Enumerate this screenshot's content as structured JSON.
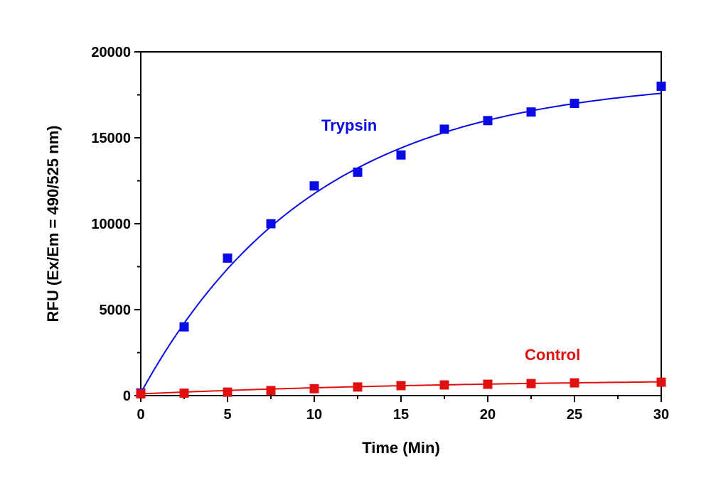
{
  "chart_data": {
    "type": "scatter",
    "xlabel": "Time (Min)",
    "ylabel": "RFU (Ex/Em = 490/525 nm)",
    "xlim": [
      0,
      30
    ],
    "ylim": [
      0,
      20000
    ],
    "x_ticks": [
      "0",
      "5",
      "10",
      "15",
      "20",
      "25",
      "30"
    ],
    "y_ticks": [
      "0",
      "5000",
      "10000",
      "15000",
      "20000"
    ],
    "grid": false,
    "legend": "none (inline series labels)",
    "series": [
      {
        "name": "Trypsin",
        "color": "#0a0ae6",
        "marker": "square",
        "x": [
          0,
          2.5,
          5,
          7.5,
          10,
          12.5,
          15,
          17.5,
          20,
          22.5,
          25,
          30
        ],
        "y": [
          150,
          4000,
          8000,
          10000,
          12200,
          13000,
          14000,
          15500,
          16000,
          16500,
          17000,
          18000
        ],
        "fit": {
          "model": "exponential rise",
          "plateau": 18500,
          "rate": 0.1
        }
      },
      {
        "name": "Control",
        "color": "#e01010",
        "marker": "square",
        "x": [
          0,
          2.5,
          5,
          7.5,
          10,
          12.5,
          15,
          17.5,
          20,
          22.5,
          25,
          30
        ],
        "y": [
          100,
          140,
          200,
          290,
          400,
          500,
          580,
          620,
          660,
          700,
          740,
          780
        ],
        "fit": {
          "model": "exponential rise",
          "plateau": 1000,
          "rate": 0.05
        }
      }
    ]
  }
}
